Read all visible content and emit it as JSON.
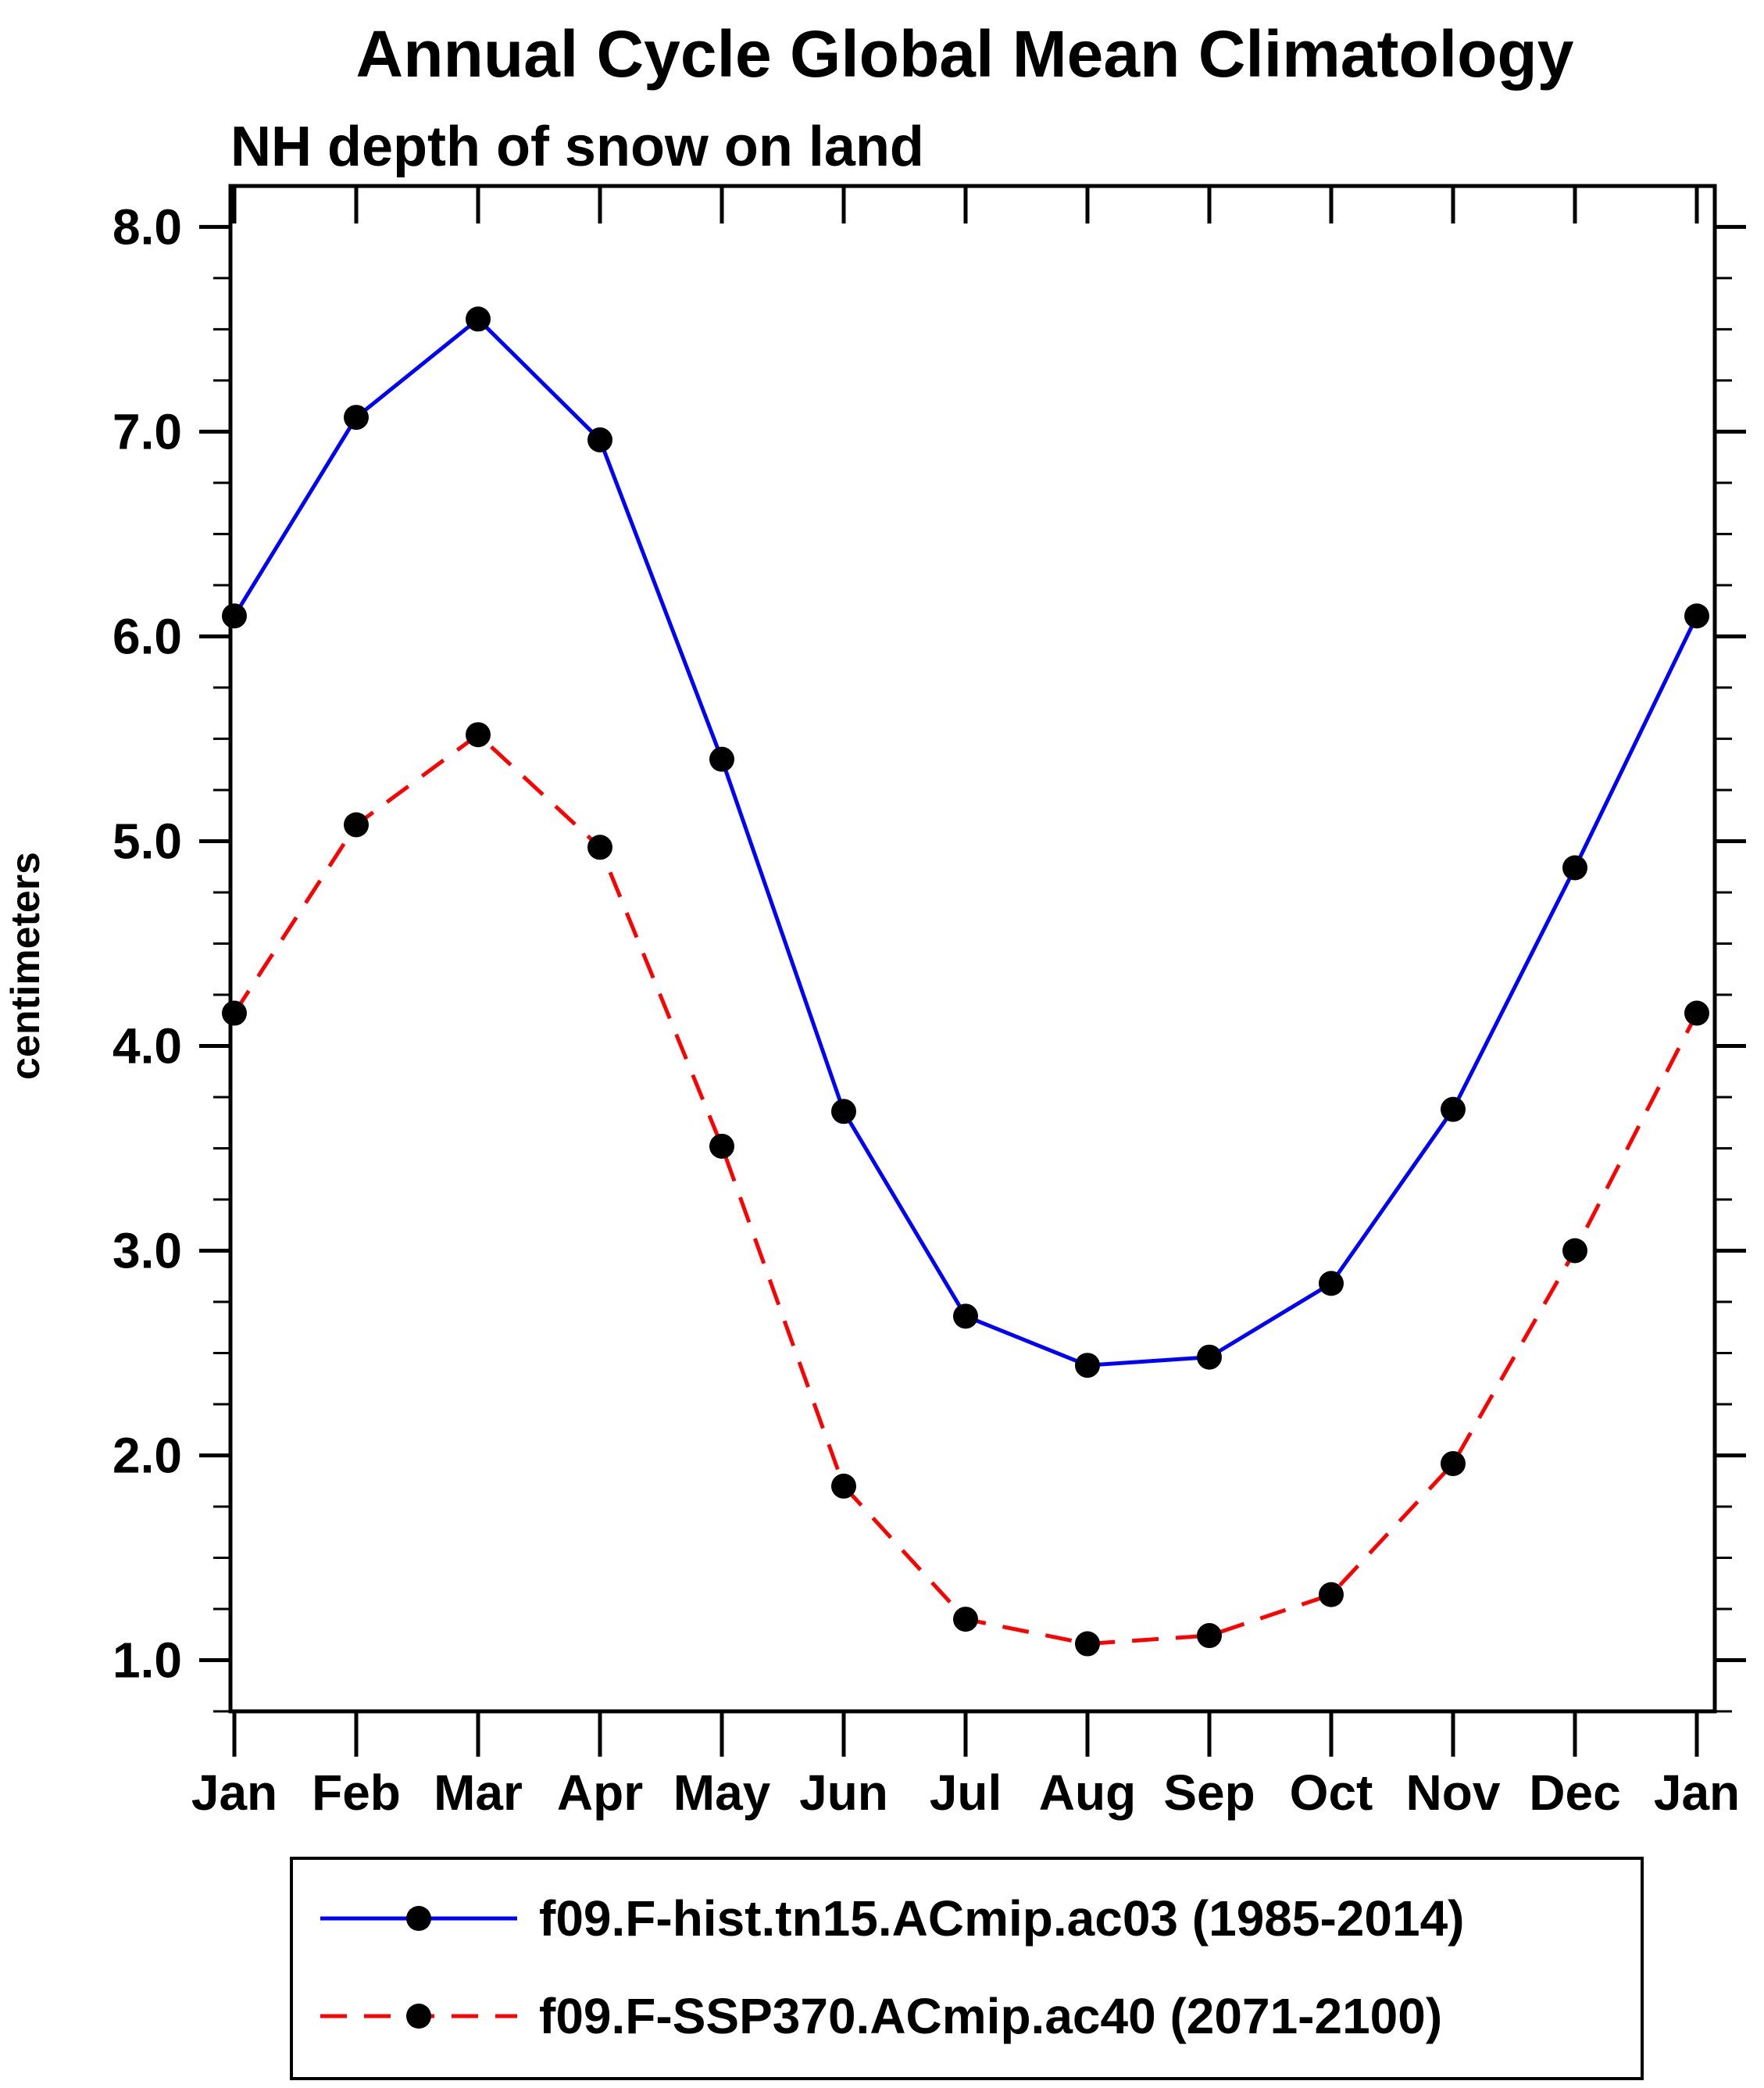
{
  "chart_data": {
    "type": "line",
    "title": "Annual Cycle Global Mean Climatology",
    "subtitle": "NH depth of snow on land",
    "ylabel": "centimeters",
    "xlabel": "",
    "categories": [
      "Jan",
      "Feb",
      "Mar",
      "Apr",
      "May",
      "Jun",
      "Jul",
      "Aug",
      "Sep",
      "Oct",
      "Nov",
      "Dec",
      "Jan"
    ],
    "ylim": [
      0.75,
      8.2
    ],
    "yticks": [
      1.0,
      2.0,
      3.0,
      4.0,
      5.0,
      6.0,
      7.0,
      8.0
    ],
    "ytick_labels": [
      "1.0",
      "2.0",
      "3.0",
      "4.0",
      "5.0",
      "6.0",
      "7.0",
      "8.0"
    ],
    "minor_tick_interval": 0.25,
    "grid": false,
    "legend_position": "bottom",
    "background_color": "#ffffff",
    "axis_color": "#000000",
    "marker": {
      "shape": "circle",
      "color": "#000000"
    },
    "series": [
      {
        "name": "f09.F-hist.tn15.ACmip.ac03 (1985-2014)",
        "color": "#0000ff",
        "line_style": "solid",
        "values": [
          6.1,
          7.07,
          7.55,
          6.96,
          5.4,
          3.68,
          2.68,
          2.44,
          2.48,
          2.84,
          3.69,
          4.87,
          6.1
        ]
      },
      {
        "name": "f09.F-SSP370.ACmip.ac40 (2071-2100)",
        "color": "#ff0000",
        "line_style": "dashed",
        "values": [
          4.16,
          5.08,
          5.52,
          4.97,
          3.51,
          1.85,
          1.2,
          1.08,
          1.12,
          1.32,
          1.96,
          3.0,
          4.16
        ]
      }
    ]
  }
}
